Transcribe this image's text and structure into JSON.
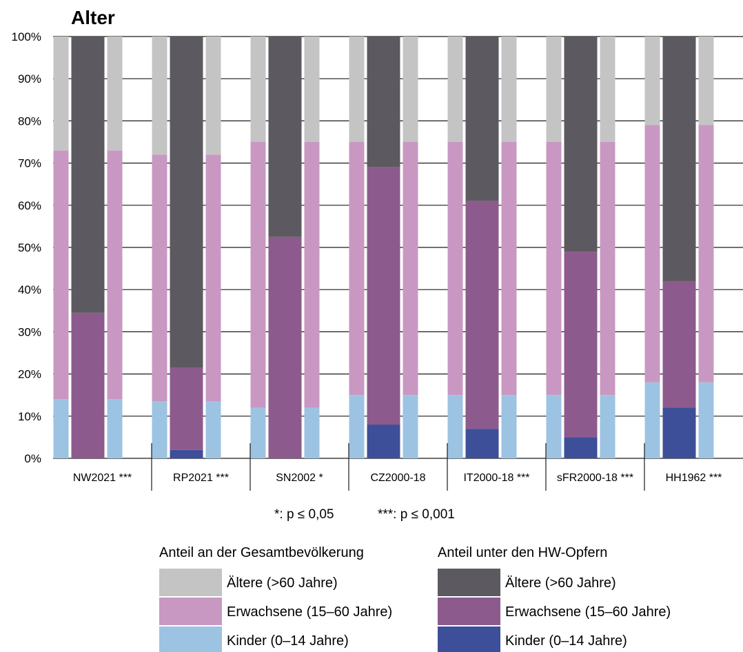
{
  "chart_data": {
    "type": "bar",
    "stacked": true,
    "title": "Alter",
    "y_ticks": [
      "0%",
      "10%",
      "20%",
      "30%",
      "40%",
      "50%",
      "60%",
      "70%",
      "80%",
      "90%",
      "100%"
    ],
    "ylim": [
      0,
      100
    ],
    "grid": true,
    "categories": [
      "NW2021 ***",
      "RP2021 ***",
      "SN2002 *",
      "CZ2000-18",
      "IT2000-18 ***",
      "sFR2000-18 ***",
      "HH1962 ***"
    ],
    "groups": [
      {
        "name": "Anteil an der Gesamtbevölkerung",
        "series": [
          {
            "name": "Kinder (0–14 Jahre)",
            "color": "#9dc3e2",
            "values": [
              14,
              13.5,
              12,
              15,
              15,
              15,
              18
            ]
          },
          {
            "name": "Erwachsene (15–60 Jahre)",
            "color": "#c898c2",
            "values": [
              59,
              58.5,
              63,
              60,
              60,
              60,
              61
            ]
          },
          {
            "name": "Ältere (>60 Jahre)",
            "color": "#c4c4c4",
            "values": [
              27,
              28,
              25,
              25,
              25,
              25,
              21
            ]
          }
        ]
      },
      {
        "name": "Anteil unter den HW-Opfern",
        "series": [
          {
            "name": "Kinder (0–14 Jahre)",
            "color": "#3d4f98",
            "values": [
              0,
              2,
              0,
              8,
              7,
              5,
              12
            ]
          },
          {
            "name": "Erwachsene (15–60 Jahre)",
            "color": "#8d5a8e",
            "values": [
              34.5,
              19.5,
              52.5,
              61,
              54,
              44,
              30
            ]
          },
          {
            "name": "Ältere (>60 Jahre)",
            "color": "#5c5a60",
            "values": [
              65.5,
              78.5,
              47.5,
              31,
              39,
              51,
              58
            ]
          }
        ]
      }
    ],
    "significance_notes": [
      "*: p ≤ 0,05",
      "***: p ≤ 0,001"
    ],
    "legend_position": "bottom"
  }
}
